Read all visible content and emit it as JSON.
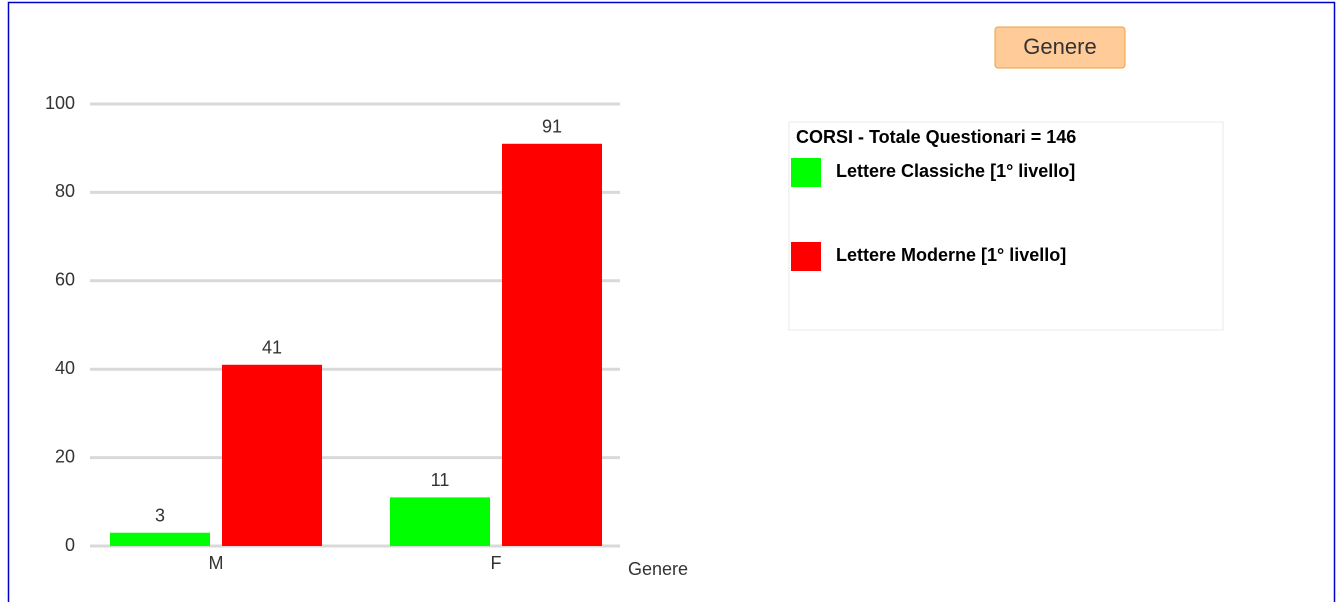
{
  "chart_data": {
    "type": "bar",
    "title": "Genere",
    "xlabel": "Genere",
    "legend_title": "CORSI - Totale Questionari = 146",
    "categories": [
      "M",
      "F"
    ],
    "series": [
      {
        "name": "Lettere Classiche [1° livello]",
        "color": "#00ff00",
        "values": [
          3,
          11
        ]
      },
      {
        "name": "Lettere Moderne [1° livello]",
        "color": "#ff0000",
        "values": [
          41,
          91
        ]
      }
    ],
    "ylim": [
      0,
      100
    ],
    "yticks": [
      0,
      20,
      40,
      60,
      80,
      100
    ],
    "grid": true
  }
}
